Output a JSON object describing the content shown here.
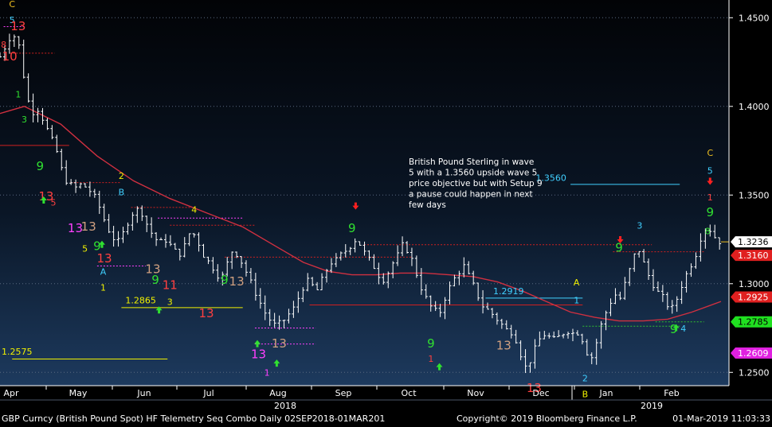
{
  "chart_data": {
    "type": "ohlc",
    "instrument": "British Pound Spot",
    "y_range": [
      1.2425,
      1.46
    ],
    "y_ticks": [
      "1.4500",
      "1.4000",
      "1.3500",
      "1.3000",
      "1.2500"
    ],
    "x_months": [
      "Apr",
      "May",
      "Jun",
      "Jul",
      "Aug",
      "Sep",
      "Oct",
      "Nov",
      "Dec",
      "Jan",
      "Feb"
    ],
    "x_years": [
      "2018",
      "2019"
    ],
    "price_path": [
      [
        0,
        1.428
      ],
      [
        8,
        1.439
      ],
      [
        14,
        1.44
      ],
      [
        18,
        1.425
      ],
      [
        22,
        1.405
      ],
      [
        27,
        1.397
      ],
      [
        32,
        1.399
      ],
      [
        37,
        1.39
      ],
      [
        42,
        1.382
      ],
      [
        47,
        1.374
      ],
      [
        52,
        1.361
      ],
      [
        57,
        1.356
      ],
      [
        62,
        1.354
      ],
      [
        67,
        1.356
      ],
      [
        72,
        1.354
      ],
      [
        77,
        1.35
      ],
      [
        82,
        1.343
      ],
      [
        87,
        1.334
      ],
      [
        92,
        1.327
      ],
      [
        97,
        1.323
      ],
      [
        102,
        1.329
      ],
      [
        107,
        1.338
      ],
      [
        112,
        1.342
      ],
      [
        117,
        1.34
      ],
      [
        122,
        1.332
      ],
      [
        127,
        1.326
      ],
      [
        132,
        1.323
      ],
      [
        137,
        1.325
      ],
      [
        142,
        1.32
      ],
      [
        147,
        1.316
      ],
      [
        152,
        1.321
      ],
      [
        157,
        1.33
      ],
      [
        162,
        1.326
      ],
      [
        167,
        1.317
      ],
      [
        172,
        1.312
      ],
      [
        177,
        1.308
      ],
      [
        182,
        1.302
      ],
      [
        187,
        1.311
      ],
      [
        192,
        1.32
      ],
      [
        197,
        1.315
      ],
      [
        202,
        1.308
      ],
      [
        207,
        1.3
      ],
      [
        212,
        1.293
      ],
      [
        217,
        1.285
      ],
      [
        222,
        1.28
      ],
      [
        227,
        1.276
      ],
      [
        232,
        1.278
      ],
      [
        237,
        1.282
      ],
      [
        242,
        1.286
      ],
      [
        247,
        1.294
      ],
      [
        252,
        1.302
      ],
      [
        257,
        1.299
      ],
      [
        262,
        1.296
      ],
      [
        267,
        1.305
      ],
      [
        272,
        1.312
      ],
      [
        277,
        1.313
      ],
      [
        282,
        1.317
      ],
      [
        287,
        1.32
      ],
      [
        292,
        1.325
      ],
      [
        297,
        1.322
      ],
      [
        302,
        1.315
      ],
      [
        307,
        1.311
      ],
      [
        312,
        1.305
      ],
      [
        317,
        1.302
      ],
      [
        322,
        1.31
      ],
      [
        327,
        1.315
      ],
      [
        332,
        1.322
      ],
      [
        337,
        1.318
      ],
      [
        342,
        1.308
      ],
      [
        347,
        1.298
      ],
      [
        352,
        1.29
      ],
      [
        357,
        1.285
      ],
      [
        362,
        1.283
      ],
      [
        367,
        1.293
      ],
      [
        372,
        1.3
      ],
      [
        377,
        1.306
      ],
      [
        382,
        1.31
      ],
      [
        387,
        1.303
      ],
      [
        392,
        1.296
      ],
      [
        397,
        1.288
      ],
      [
        402,
        1.285
      ],
      [
        407,
        1.282
      ],
      [
        412,
        1.278
      ],
      [
        417,
        1.274
      ],
      [
        422,
        1.273
      ],
      [
        427,
        1.266
      ],
      [
        432,
        1.252
      ],
      [
        437,
        1.257
      ],
      [
        442,
        1.265
      ],
      [
        447,
        1.272
      ],
      [
        452,
        1.27
      ],
      [
        457,
        1.268
      ],
      [
        462,
        1.271
      ],
      [
        467,
        1.274
      ],
      [
        472,
        1.272
      ],
      [
        477,
        1.273
      ],
      [
        482,
        1.265
      ],
      [
        486,
        1.256
      ],
      [
        490,
        1.263
      ],
      [
        494,
        1.274
      ],
      [
        498,
        1.282
      ],
      [
        502,
        1.288
      ],
      [
        506,
        1.295
      ],
      [
        510,
        1.29
      ],
      [
        514,
        1.298
      ],
      [
        518,
        1.306
      ],
      [
        522,
        1.315
      ],
      [
        526,
        1.32
      ],
      [
        530,
        1.312
      ],
      [
        534,
        1.305
      ],
      [
        538,
        1.3
      ],
      [
        542,
        1.295
      ],
      [
        546,
        1.292
      ],
      [
        550,
        1.288
      ],
      [
        554,
        1.286
      ],
      [
        558,
        1.292
      ],
      [
        562,
        1.3
      ],
      [
        566,
        1.306
      ],
      [
        570,
        1.312
      ],
      [
        574,
        1.318
      ],
      [
        578,
        1.328
      ],
      [
        582,
        1.332
      ],
      [
        586,
        1.33
      ],
      [
        590,
        1.325
      ],
      [
        594,
        1.3236
      ]
    ],
    "price_x_max": 594,
    "moving_average": [
      [
        0,
        1.396
      ],
      [
        20,
        1.4
      ],
      [
        50,
        1.39
      ],
      [
        80,
        1.372
      ],
      [
        110,
        1.358
      ],
      [
        140,
        1.348
      ],
      [
        170,
        1.34
      ],
      [
        200,
        1.332
      ],
      [
        230,
        1.32
      ],
      [
        250,
        1.312
      ],
      [
        270,
        1.307
      ],
      [
        290,
        1.305
      ],
      [
        310,
        1.305
      ],
      [
        330,
        1.306
      ],
      [
        350,
        1.306
      ],
      [
        370,
        1.305
      ],
      [
        390,
        1.304
      ],
      [
        410,
        1.301
      ],
      [
        430,
        1.296
      ],
      [
        450,
        1.29
      ],
      [
        470,
        1.284
      ],
      [
        490,
        1.281
      ],
      [
        510,
        1.279
      ],
      [
        530,
        1.279
      ],
      [
        550,
        1.28
      ],
      [
        570,
        1.284
      ],
      [
        594,
        1.29
      ]
    ],
    "horizontal_levels": [
      {
        "value": 1.445,
        "from": 3,
        "to": 20,
        "color": "#ff40ff",
        "dash": true
      },
      {
        "value": 1.43,
        "from": 8,
        "to": 45,
        "color": "#d02020",
        "dash": true
      },
      {
        "value": 1.378,
        "from": 0,
        "to": 57,
        "color": "#d02020",
        "dash": false
      },
      {
        "value": 1.357,
        "from": 58,
        "to": 100,
        "color": "#d02020",
        "dash": true
      },
      {
        "value": 1.343,
        "from": 108,
        "to": 160,
        "color": "#d02020",
        "dash": true
      },
      {
        "value": 1.337,
        "from": 130,
        "to": 200,
        "color": "#ff40ff",
        "dash": true
      },
      {
        "value": 1.333,
        "from": 140,
        "to": 210,
        "color": "#d02020",
        "dash": true
      },
      {
        "value": 1.315,
        "from": 185,
        "to": 340,
        "color": "#d02020",
        "dash": true
      },
      {
        "value": 1.322,
        "from": 300,
        "to": 537,
        "color": "#d02020",
        "dash": true
      },
      {
        "value": 1.31,
        "from": 80,
        "to": 120,
        "color": "#ff40ff",
        "dash": true
      },
      {
        "value": 1.2865,
        "from": 100,
        "to": 200,
        "color": "#f0f000",
        "dash": false
      },
      {
        "value": 1.2575,
        "from": 10,
        "to": 138,
        "color": "#f0f000",
        "dash": false
      },
      {
        "value": 1.288,
        "from": 255,
        "to": 480,
        "color": "#d02020",
        "dash": false
      },
      {
        "value": 1.2919,
        "from": 400,
        "to": 480,
        "color": "#40d0ff",
        "dash": false
      },
      {
        "value": 1.275,
        "from": 210,
        "to": 260,
        "color": "#ff40ff",
        "dash": true
      },
      {
        "value": 1.266,
        "from": 210,
        "to": 260,
        "color": "#ff40ff",
        "dash": true
      },
      {
        "value": 1.356,
        "from": 470,
        "to": 560,
        "color": "#40d0ff",
        "dash": false
      },
      {
        "value": 1.318,
        "from": 505,
        "to": 580,
        "color": "#d02020",
        "dash": true
      },
      {
        "value": 1.276,
        "from": 480,
        "to": 560,
        "color": "#30c030",
        "dash": true
      },
      {
        "value": 1.2785,
        "from": 540,
        "to": 580,
        "color": "#30c030",
        "dash": true
      }
    ],
    "level_labels": [
      {
        "text": "1.2865",
        "x": 102,
        "y": 1.289,
        "color": "#f0f000"
      },
      {
        "text": "1.2575",
        "x": 0,
        "y": 1.26,
        "color": "#f0f000"
      },
      {
        "text": "1.2919",
        "x": 405,
        "y": 1.294,
        "color": "#40d0ff"
      },
      {
        "text": "1.3560",
        "x": 440,
        "y": 1.358,
        "color": "#40d0ff"
      }
    ],
    "seq_labels": [
      {
        "t": "C",
        "x": 10,
        "y": 1.456,
        "c": "#f0c020"
      },
      {
        "t": "5",
        "x": 10,
        "y": 1.447,
        "c": "#40d0ff"
      },
      {
        "t": "13",
        "x": 15,
        "y": 1.443,
        "c": "#ff4040"
      },
      {
        "t": "8",
        "x": 3,
        "y": 1.433,
        "c": "#ff4040"
      },
      {
        "t": "10",
        "x": 8,
        "y": 1.426,
        "c": "#ff4040"
      },
      {
        "t": "1",
        "x": 15,
        "y": 1.405,
        "c": "#30e030"
      },
      {
        "t": "3",
        "x": 20,
        "y": 1.391,
        "c": "#30e030"
      },
      {
        "t": "9",
        "x": 33,
        "y": 1.364,
        "c": "#30e030"
      },
      {
        "t": "13",
        "x": 38,
        "y": 1.347,
        "c": "#ff4040"
      },
      {
        "t": "5",
        "x": 44,
        "y": 1.344,
        "c": "#ff4040"
      },
      {
        "t": "2",
        "x": 100,
        "y": 1.359,
        "c": "#f0f000"
      },
      {
        "t": "B",
        "x": 100,
        "y": 1.35,
        "c": "#40d0ff"
      },
      {
        "t": "13",
        "x": 62,
        "y": 1.329,
        "c": "#ff40ff"
      },
      {
        "t": "13",
        "x": 73,
        "y": 1.33,
        "c": "#d0a080"
      },
      {
        "t": "5",
        "x": 70,
        "y": 1.318,
        "c": "#f0f000"
      },
      {
        "t": "9",
        "x": 80,
        "y": 1.319,
        "c": "#30e030"
      },
      {
        "t": "13",
        "x": 86,
        "y": 1.312,
        "c": "#ff4040"
      },
      {
        "t": "A",
        "x": 85,
        "y": 1.305,
        "c": "#40d0ff"
      },
      {
        "t": "1",
        "x": 85,
        "y": 1.296,
        "c": "#f0f000"
      },
      {
        "t": "13",
        "x": 126,
        "y": 1.306,
        "c": "#d0a080"
      },
      {
        "t": "9",
        "x": 128,
        "y": 1.3,
        "c": "#30e030"
      },
      {
        "t": "3",
        "x": 140,
        "y": 1.288,
        "c": "#f0f000"
      },
      {
        "t": "11",
        "x": 140,
        "y": 1.297,
        "c": "#ff4040"
      },
      {
        "t": "4",
        "x": 160,
        "y": 1.34,
        "c": "#f0f000"
      },
      {
        "t": "9",
        "x": 185,
        "y": 1.3,
        "c": "#30e030"
      },
      {
        "t": "13",
        "x": 195,
        "y": 1.299,
        "c": "#d0a080"
      },
      {
        "t": "13",
        "x": 170,
        "y": 1.281,
        "c": "#ff4040"
      },
      {
        "t": "13",
        "x": 213,
        "y": 1.258,
        "c": "#ff40ff"
      },
      {
        "t": "13",
        "x": 230,
        "y": 1.264,
        "c": "#d0a080"
      },
      {
        "t": "1",
        "x": 220,
        "y": 1.248,
        "c": "#ff40ff"
      },
      {
        "t": "9",
        "x": 290,
        "y": 1.329,
        "c": "#30e030"
      },
      {
        "t": "9",
        "x": 355,
        "y": 1.264,
        "c": "#30e030"
      },
      {
        "t": "1",
        "x": 355,
        "y": 1.256,
        "c": "#ff4040"
      },
      {
        "t": "13",
        "x": 415,
        "y": 1.263,
        "c": "#d0a080"
      },
      {
        "t": "13",
        "x": 440,
        "y": 1.239,
        "c": "#ff4040"
      },
      {
        "t": "A",
        "x": 475,
        "y": 1.299,
        "c": "#f0f000"
      },
      {
        "t": "1",
        "x": 475,
        "y": 1.289,
        "c": "#40d0ff"
      },
      {
        "t": "2",
        "x": 482,
        "y": 1.245,
        "c": "#40d0ff"
      },
      {
        "t": "B",
        "x": 482,
        "y": 1.236,
        "c": "#f0f000"
      },
      {
        "t": "3",
        "x": 527,
        "y": 1.331,
        "c": "#40d0ff"
      },
      {
        "t": "9",
        "x": 510,
        "y": 1.318,
        "c": "#30e030"
      },
      {
        "t": "9",
        "x": 555,
        "y": 1.272,
        "c": "#30e030"
      },
      {
        "t": "4",
        "x": 563,
        "y": 1.273,
        "c": "#40d0ff"
      },
      {
        "t": "C",
        "x": 585,
        "y": 1.372,
        "c": "#f0c020"
      },
      {
        "t": "5",
        "x": 585,
        "y": 1.362,
        "c": "#40d0ff"
      },
      {
        "t": "1",
        "x": 585,
        "y": 1.347,
        "c": "#ff4040"
      },
      {
        "t": "9",
        "x": 585,
        "y": 1.338,
        "c": "#30e030"
      },
      {
        "t": "8",
        "x": 583,
        "y": 1.328,
        "c": "#30e030"
      }
    ],
    "arrows": [
      {
        "dir": "up",
        "x": 36,
        "y": 1.347,
        "c": "#30e030"
      },
      {
        "dir": "up",
        "x": 84,
        "y": 1.322,
        "c": "#30e030"
      },
      {
        "dir": "up",
        "x": 131,
        "y": 1.285,
        "c": "#30e030"
      },
      {
        "dir": "up",
        "x": 212,
        "y": 1.266,
        "c": "#30e030"
      },
      {
        "dir": "up",
        "x": 228,
        "y": 1.255,
        "c": "#30e030"
      },
      {
        "dir": "up",
        "x": 362,
        "y": 1.253,
        "c": "#30e030"
      },
      {
        "dir": "up",
        "x": 557,
        "y": 1.275,
        "c": "#30e030"
      },
      {
        "dir": "down",
        "x": 293,
        "y": 1.344,
        "c": "#ff2020"
      },
      {
        "dir": "down",
        "x": 511,
        "y": 1.325,
        "c": "#ff2020"
      },
      {
        "dir": "down",
        "x": 585,
        "y": 1.358,
        "c": "#ff2020"
      }
    ],
    "annotation": "British Pound Sterling in wave\n5 with a 1.3560 upside wave 5\nprice objective but with Setup 9\na pause could happen in next\nfew days",
    "right_axis_tags": [
      {
        "value": 1.3236,
        "text": "1.3236",
        "bg": "#ffffff",
        "fg": "#000000"
      },
      {
        "value": 1.316,
        "text": "1.3160",
        "bg": "#e02020",
        "fg": "#ffffff"
      },
      {
        "value": 1.2925,
        "text": "1.2925",
        "bg": "#e02020",
        "fg": "#ffffff"
      },
      {
        "value": 1.2785,
        "text": "1.2785",
        "bg": "#20e020",
        "fg": "#000000"
      },
      {
        "value": 1.2609,
        "text": "1.2609",
        "bg": "#e020e0",
        "fg": "#ffffff"
      }
    ],
    "colors": {
      "bars": "#ffffff",
      "moving_average": "#d03040",
      "grid": "#5a6a80"
    }
  },
  "footer": {
    "left": "GBP Curncy (British Pound Spot) HF Telemetry Seq Combo  Daily 02SEP2018-01MAR201",
    "center": "Copyright© 2019 Bloomberg Finance L.P.",
    "right": "01-Mar-2019 11:03:33"
  }
}
